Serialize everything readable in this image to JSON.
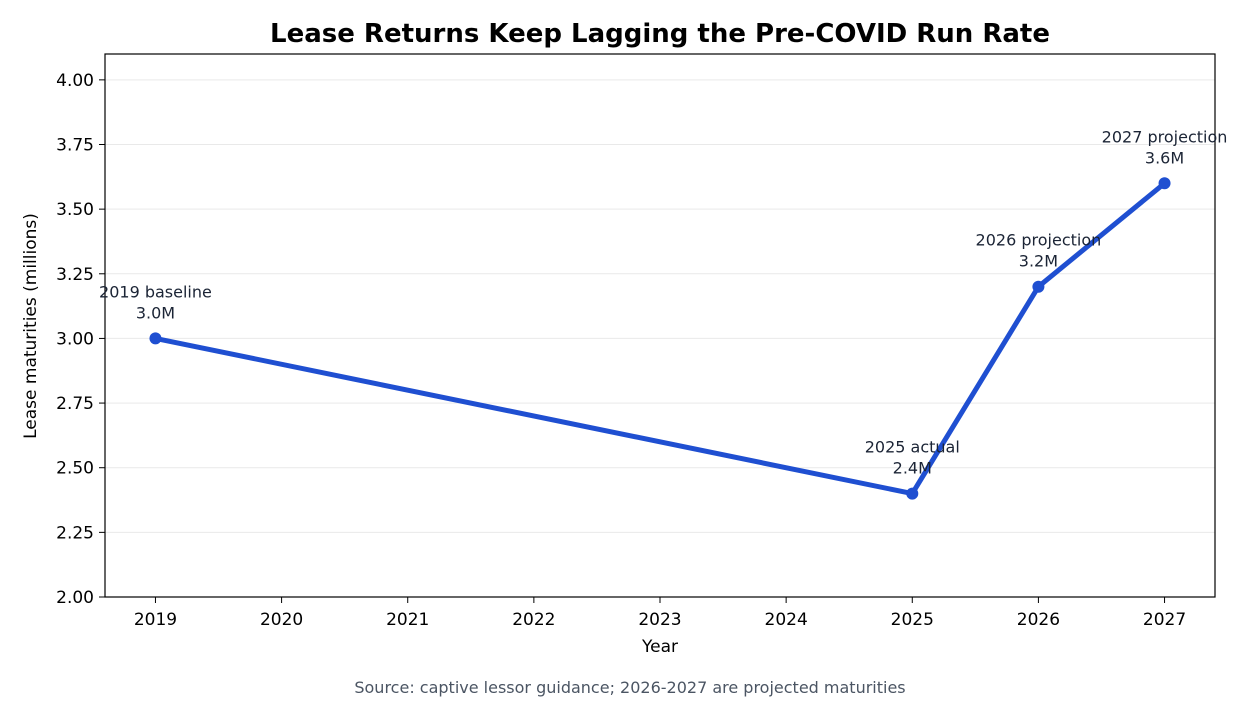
{
  "chart_data": {
    "type": "line",
    "title": "Lease Returns Keep Lagging the Pre-COVID Run Rate",
    "xlabel": "Year",
    "ylabel": "Lease maturities (millions)",
    "xlim": [
      2018.6,
      2027.4
    ],
    "ylim": [
      2.0,
      4.1
    ],
    "x_ticks": [
      2019,
      2020,
      2021,
      2022,
      2023,
      2024,
      2025,
      2026,
      2027
    ],
    "y_ticks": [
      2.0,
      2.25,
      2.5,
      2.75,
      3.0,
      3.25,
      3.5,
      3.75,
      4.0
    ],
    "x_tick_labels": [
      "2019",
      "2020",
      "2021",
      "2022",
      "2023",
      "2024",
      "2025",
      "2026",
      "2027"
    ],
    "y_tick_labels": [
      "2.00",
      "2.25",
      "2.50",
      "2.75",
      "3.00",
      "3.25",
      "3.50",
      "3.75",
      "4.00"
    ],
    "grid": "horizontal",
    "series": [
      {
        "color": "#1f4fd1",
        "points": [
          {
            "x": 2019,
            "y": 3.0
          },
          {
            "x": 2025,
            "y": 2.4
          },
          {
            "x": 2026,
            "y": 3.2
          },
          {
            "x": 2027,
            "y": 3.6
          }
        ]
      }
    ],
    "annotations": [
      {
        "x": 2019,
        "y": 3.0,
        "line1": "2019 baseline",
        "line2": "3.0M"
      },
      {
        "x": 2025,
        "y": 2.4,
        "line1": "2025 actual",
        "line2": "2.4M"
      },
      {
        "x": 2026,
        "y": 3.2,
        "line1": "2026 projection",
        "line2": "3.2M"
      },
      {
        "x": 2027,
        "y": 3.6,
        "line1": "2027 projection",
        "line2": "3.6M"
      }
    ],
    "source_note": "Source: captive lessor guidance; 2026-2027 are projected maturities"
  }
}
